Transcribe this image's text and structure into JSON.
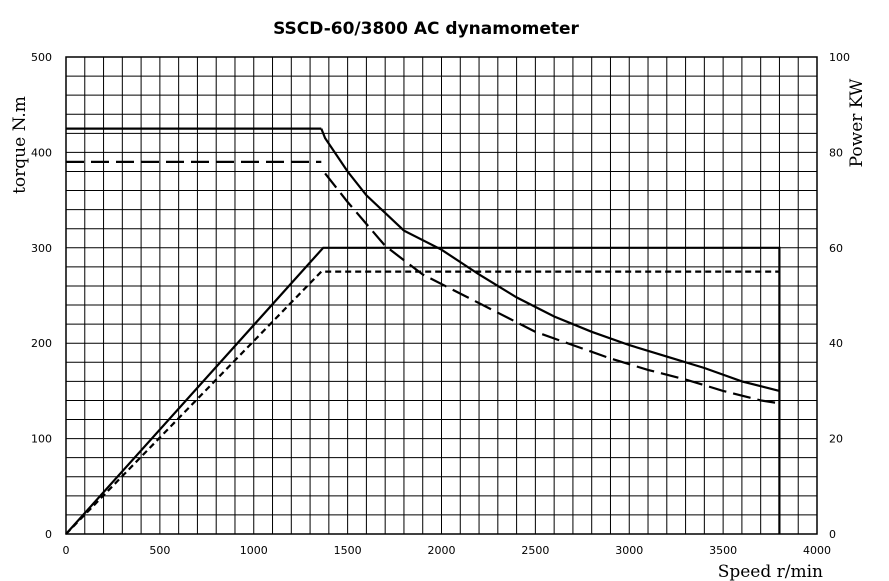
{
  "chart_data": {
    "type": "line",
    "title": "SSCD-60/3800 AC dynamometer",
    "xlabel": "Speed r/min",
    "ylabel_left": "torque N.m",
    "ylabel_right": "Power KW",
    "xlim": [
      0,
      4000
    ],
    "ylim_left": [
      0,
      500
    ],
    "ylim_right": [
      0,
      100
    ],
    "x_ticks": [
      0,
      500,
      1000,
      1500,
      2000,
      2500,
      3000,
      3500,
      4000
    ],
    "y_ticks_left": [
      0,
      100,
      200,
      300,
      400,
      500
    ],
    "y_ticks_right": [
      0,
      20,
      40,
      60,
      80,
      100
    ],
    "grid": true,
    "grid_x_step": 100,
    "grid_y_step": 20,
    "series": [
      {
        "axis": "left",
        "style": "solid",
        "x": [
          1360,
          1380,
          1500,
          1600,
          1800,
          2000,
          2200,
          2400,
          2600,
          2800,
          3000,
          3200,
          3400,
          3600,
          3800
        ],
        "y": [
          425,
          415,
          380,
          355,
          318,
          298,
          272,
          248,
          228,
          212,
          198,
          186,
          174,
          160,
          150
        ]
      },
      {
        "axis": "left",
        "style": "dashed",
        "x": [
          0,
          1360
        ],
        "y": [
          390,
          390
        ]
      },
      {
        "axis": "left",
        "style": "dashed",
        "x": [
          1380,
          1500,
          1700,
          1900,
          2100,
          2300,
          2500,
          2700,
          2900,
          3100,
          3300,
          3500,
          3700,
          3800
        ],
        "y": [
          378,
          348,
          302,
          272,
          252,
          232,
          212,
          198,
          184,
          172,
          162,
          150,
          140,
          137
        ]
      },
      {
        "axis": "left",
        "style": "solid",
        "x": [
          0,
          1360
        ],
        "y": [
          425,
          425
        ]
      },
      {
        "axis": "right",
        "style": "solid",
        "x": [
          0,
          1370,
          3800,
          3800
        ],
        "y": [
          0,
          60,
          60,
          0
        ]
      },
      {
        "axis": "right",
        "style": "dotted",
        "x": [
          0,
          1360,
          3800
        ],
        "y": [
          0,
          55,
          55
        ]
      }
    ]
  }
}
